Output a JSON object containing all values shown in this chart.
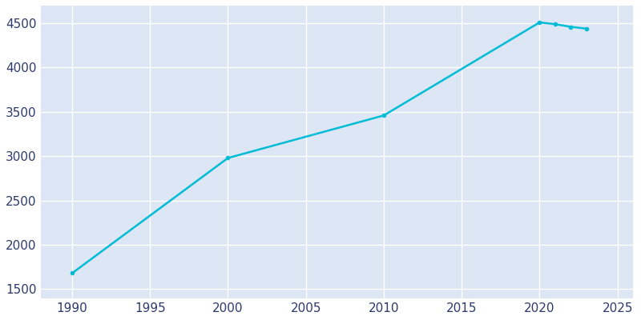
{
  "years": [
    1990,
    2000,
    2010,
    2020,
    2021,
    2022,
    2023
  ],
  "population": [
    1680,
    2980,
    3460,
    4510,
    4490,
    4460,
    4440
  ],
  "line_color": "#00bcd4",
  "marker_style": "o",
  "marker_size": 3,
  "line_width": 1.8,
  "plot_bg_color": "#dce6f5",
  "fig_bg_color": "#ffffff",
  "grid_color": "#ffffff",
  "tick_color": "#2d3a6b",
  "xlim": [
    1988,
    2026
  ],
  "ylim": [
    1400,
    4700
  ],
  "xticks": [
    1990,
    1995,
    2000,
    2005,
    2010,
    2015,
    2020,
    2025
  ],
  "yticks": [
    1500,
    2000,
    2500,
    3000,
    3500,
    4000,
    4500
  ],
  "tick_fontsize": 11
}
